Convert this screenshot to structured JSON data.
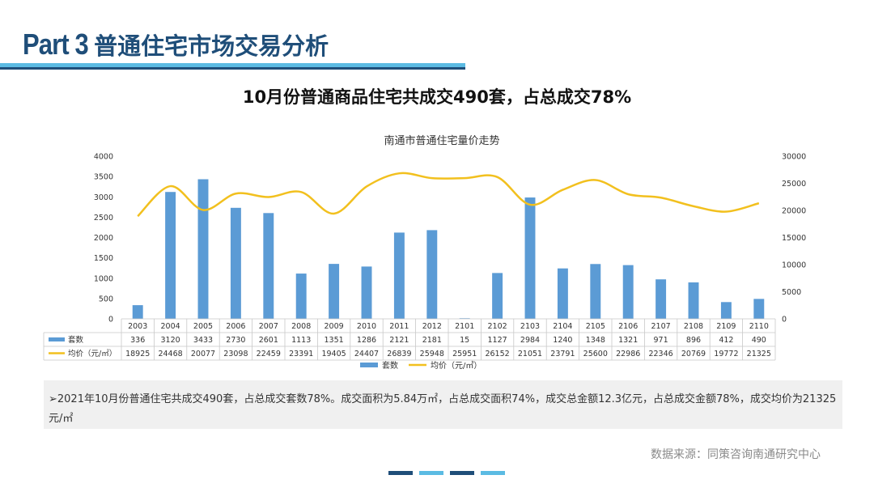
{
  "header": {
    "part": "Part 3",
    "title": "普通住宅市场交易分析"
  },
  "headline": "10月份普通商品住宅共成交490套，占总成交78%",
  "chart_data": {
    "type": "bar+line",
    "title": "南通市普通住宅量价走势",
    "categories": [
      "2003",
      "2004",
      "2005",
      "2006",
      "2007",
      "2008",
      "2009",
      "2010",
      "2011",
      "2012",
      "2101",
      "2102",
      "2103",
      "2104",
      "2105",
      "2106",
      "2107",
      "2108",
      "2109",
      "2110"
    ],
    "series": [
      {
        "name": "套数",
        "type": "bar",
        "axis": "left",
        "color": "#5b9bd5",
        "values": [
          336,
          3120,
          3433,
          2730,
          2601,
          1113,
          1351,
          1286,
          2121,
          2181,
          15,
          1127,
          2984,
          1240,
          1348,
          1321,
          971,
          896,
          412,
          490
        ]
      },
      {
        "name": "均价（元/㎡）",
        "type": "line",
        "axis": "right",
        "color": "#f2c01e",
        "values": [
          18925,
          24468,
          20077,
          23098,
          22459,
          23391,
          19405,
          24407,
          26839,
          25948,
          25951,
          26152,
          21051,
          23791,
          25600,
          22986,
          22346,
          20769,
          19772,
          21325
        ]
      }
    ],
    "y_left": {
      "min": 0,
      "max": 4000,
      "ticks": [
        0,
        500,
        1000,
        1500,
        2000,
        2500,
        3000,
        3500,
        4000
      ]
    },
    "y_right": {
      "min": 0,
      "max": 30000,
      "ticks": [
        0,
        5000,
        10000,
        15000,
        20000,
        25000,
        30000
      ]
    },
    "legend_position": "bottom",
    "data_table": true,
    "grid": false
  },
  "note": "➢2021年10月份普通住宅共成交490套，占总成交套数78%。成交面积为5.84万㎡，占总成交面积74%，成交总金额12.3亿元，占总成交金额78%，成交均价为21325元/㎡",
  "source": "数据来源：同策咨询南通研究中心",
  "colors": {
    "brand_dark": "#1f4e79",
    "brand_light": "#5bbbe3",
    "bar": "#5b9bd5",
    "line": "#f2c01e"
  }
}
